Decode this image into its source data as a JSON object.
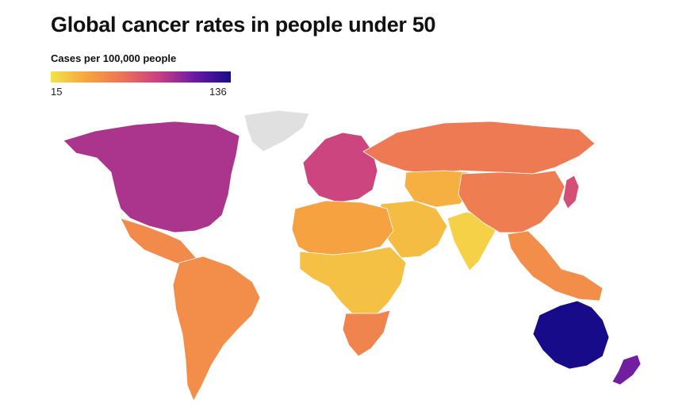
{
  "title": "Global cancer rates in people under 50",
  "legend": {
    "title": "Cases per 100,000 people",
    "min": "15",
    "max": "136",
    "min_value": 15,
    "max_value": 136,
    "colors": [
      "#f4e34a",
      "#f6a43f",
      "#ec7356",
      "#c83f84",
      "#6a1ba3",
      "#170b8a"
    ],
    "no_data_color": "#e0e0e0"
  },
  "map": {
    "regions": [
      {
        "name": "Greenland",
        "value": null
      },
      {
        "name": "North America",
        "value": 95
      },
      {
        "name": "Mexico and Central America",
        "value": 52
      },
      {
        "name": "South America",
        "value": 50
      },
      {
        "name": "Europe",
        "value": 85
      },
      {
        "name": "Russia",
        "value": 60
      },
      {
        "name": "Central Asia",
        "value": 35
      },
      {
        "name": "Middle East",
        "value": 30
      },
      {
        "name": "North Africa",
        "value": 40
      },
      {
        "name": "Sub-Saharan Africa",
        "value": 28
      },
      {
        "name": "Southern Africa",
        "value": 55
      },
      {
        "name": "India",
        "value": 22
      },
      {
        "name": "China",
        "value": 58
      },
      {
        "name": "Southeast Asia",
        "value": 50
      },
      {
        "name": "Japan",
        "value": 80
      },
      {
        "name": "Australia",
        "value": 136
      },
      {
        "name": "New Zealand",
        "value": 110
      }
    ]
  }
}
